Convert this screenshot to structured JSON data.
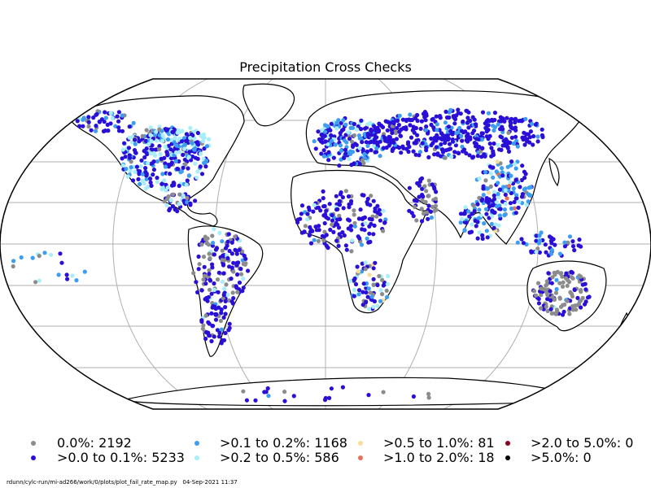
{
  "title": "Precipitation Cross Checks",
  "legend": [
    {
      "label": "0.0%: 2192",
      "color": "#8c8c8c"
    },
    {
      "label": ">0.0 to 0.1%: 5233",
      "color": "#2a10d6"
    },
    {
      "label": ">0.1 to 0.2%: 1168",
      "color": "#3d9df0"
    },
    {
      "label": ">0.2 to 0.5%: 586",
      "color": "#a8eefa"
    },
    {
      "label": ">0.5 to 1.0%: 81",
      "color": "#f8dc9c"
    },
    {
      "label": ">1.0 to 2.0%: 18",
      "color": "#e8705a"
    },
    {
      "label": ">2.0 to 5.0%: 0",
      "color": "#8c0020"
    },
    {
      "label": ">5.0%: 0",
      "color": "#000000"
    }
  ],
  "footer": "rdunn/cylc-run/mi-ad266/work/0/plots/plot_fail_rate_map.py   04-Sep-2021 11:37"
}
